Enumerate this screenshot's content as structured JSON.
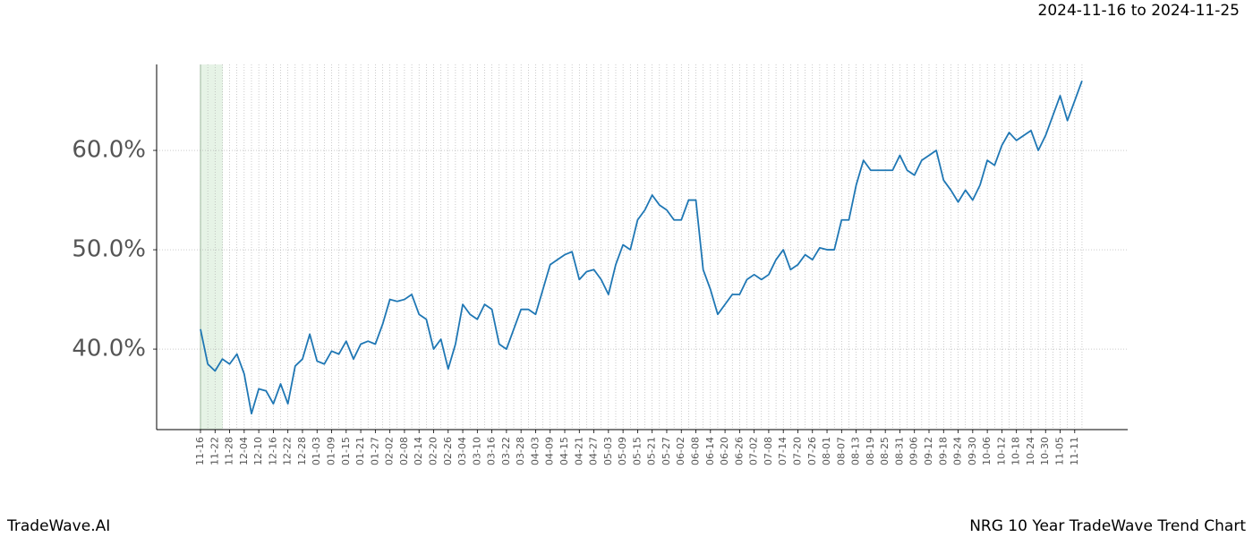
{
  "chart_data": {
    "type": "line",
    "title": "2024-11-16 to 2024-11-25",
    "footer_left": "TradeWave.AI",
    "footer_right": "NRG 10 Year TradeWave Trend Chart",
    "categories": [
      "11-16",
      null,
      "11-22",
      null,
      "11-28",
      null,
      "12-04",
      null,
      "12-10",
      null,
      "12-16",
      null,
      "12-22",
      null,
      "12-28",
      null,
      "01-03",
      null,
      "01-09",
      null,
      "01-15",
      null,
      "01-21",
      null,
      "01-27",
      null,
      "02-02",
      null,
      "02-08",
      null,
      "02-14",
      null,
      "02-20",
      null,
      "02-26",
      null,
      "03-04",
      null,
      "03-10",
      null,
      "03-16",
      null,
      "03-22",
      null,
      "03-28",
      null,
      "04-03",
      null,
      "04-09",
      null,
      "04-15",
      null,
      "04-21",
      null,
      "04-27",
      null,
      "05-03",
      null,
      "05-09",
      null,
      "05-15",
      null,
      "05-21",
      null,
      "05-27",
      null,
      "06-02",
      null,
      "06-08",
      null,
      "06-14",
      null,
      "06-20",
      null,
      "06-26",
      null,
      "07-02",
      null,
      "07-08",
      null,
      "07-14",
      null,
      "07-20",
      null,
      "07-26",
      null,
      "08-01",
      null,
      "08-07",
      null,
      "08-13",
      null,
      "08-19",
      null,
      "08-25",
      null,
      "08-31",
      null,
      "09-06",
      null,
      "09-12",
      null,
      "09-18",
      null,
      "09-24",
      null,
      "09-30",
      null,
      "10-06",
      null,
      "10-12",
      null,
      "10-18",
      null,
      "10-24",
      null,
      "10-30",
      null,
      "11-05",
      null,
      "11-11",
      null
    ],
    "series": [
      {
        "color": "#1f77b4",
        "values": [
          42.0,
          38.5,
          37.8,
          39.0,
          38.5,
          39.5,
          37.5,
          33.5,
          36.0,
          35.8,
          34.5,
          36.5,
          34.5,
          38.3,
          39.0,
          41.5,
          38.8,
          38.5,
          39.8,
          39.5,
          40.8,
          39.0,
          40.5,
          40.8,
          40.5,
          42.5,
          45.0,
          44.8,
          45.0,
          45.5,
          43.5,
          43.0,
          40.0,
          41.0,
          38.0,
          40.5,
          44.5,
          43.5,
          43.0,
          44.5,
          44.0,
          40.5,
          40.0,
          42.0,
          44.0,
          44.0,
          43.5,
          46.0,
          48.5,
          49.0,
          49.5,
          49.8,
          47.0,
          47.8,
          48.0,
          47.0,
          45.5,
          48.5,
          50.5,
          50.0,
          53.0,
          54.0,
          55.5,
          54.5,
          54.0,
          53.0,
          53.0,
          55.0,
          55.0,
          48.0,
          46.0,
          43.5,
          44.5,
          45.5,
          45.5,
          47.0,
          47.5,
          47.0,
          47.5,
          49.0,
          50.0,
          48.0,
          48.5,
          49.5,
          49.0,
          50.2,
          50.0,
          50.0,
          53.0,
          53.0,
          56.5,
          59.0,
          58.0,
          58.0,
          58.0,
          58.0,
          59.5,
          58.0,
          57.5,
          59.0,
          59.5,
          60.0,
          57.0,
          56.0,
          54.8,
          56.0,
          55.0,
          56.5,
          59.0,
          58.5,
          60.5,
          61.8,
          61.0,
          61.5,
          62.0,
          60.0,
          61.5,
          63.5,
          65.5,
          63.0,
          65.0,
          67.0
        ]
      }
    ],
    "ylim": [
      31.9,
      68.65
    ],
    "yticks": [
      {
        "value": 40,
        "label": "40.0%"
      },
      {
        "value": 50,
        "label": "50.0%"
      },
      {
        "value": 60,
        "label": "60.0%"
      }
    ],
    "grid": true
  }
}
